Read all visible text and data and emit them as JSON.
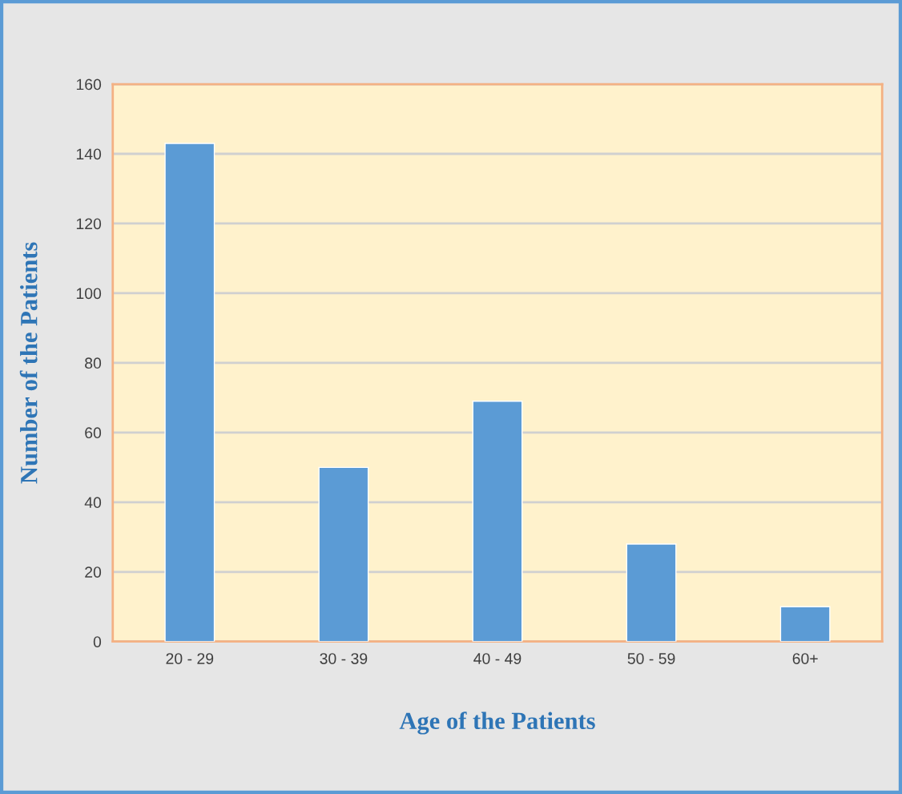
{
  "chart_data": {
    "type": "bar",
    "xlabel": "Age of the Patients",
    "ylabel": "Number of the Patients",
    "categories": [
      "20 - 29",
      "30 - 39",
      "40 - 49",
      "50 - 59",
      "60+"
    ],
    "values": [
      143,
      50,
      69,
      28,
      10
    ],
    "color": "#5b9bd5",
    "ylim": [
      0,
      160
    ],
    "yticks": [
      0,
      20,
      40,
      60,
      80,
      100,
      120,
      140,
      160
    ],
    "grid": "y",
    "legend": false
  }
}
